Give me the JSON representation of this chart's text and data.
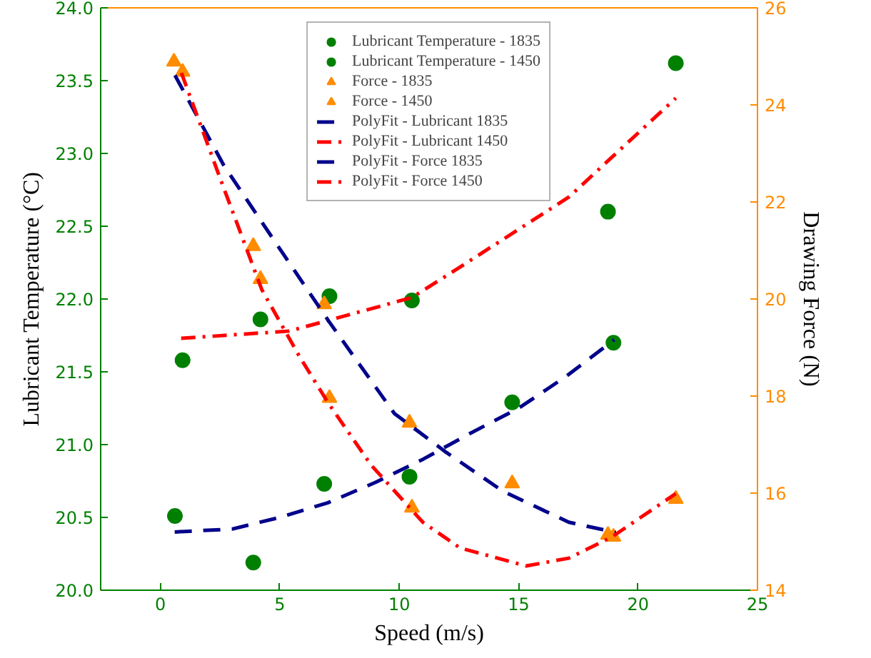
{
  "chart_data": {
    "type": "scatter",
    "xlabel": "Speed (m/s)",
    "ylabel": "Lubricant Temperature (°C)",
    "y2label": "Drawing Force (N)",
    "xlim": [
      -2.5,
      25
    ],
    "xticks": [
      0,
      5,
      10,
      15,
      20,
      25
    ],
    "ylim": [
      20.0,
      24.0
    ],
    "yticks": [
      {
        "value": 20.0,
        "label": "20.0"
      },
      {
        "value": 20.5,
        "label": "20.5"
      },
      {
        "value": 21.0,
        "label": "21.0"
      },
      {
        "value": 21.5,
        "label": "21.5"
      },
      {
        "value": 22.0,
        "label": "22.0"
      },
      {
        "value": 22.5,
        "label": "22.5"
      },
      {
        "value": 23.0,
        "label": "23.0"
      },
      {
        "value": 23.5,
        "label": "23.5"
      },
      {
        "value": 24.0,
        "label": "24.0"
      }
    ],
    "y2lim": [
      14,
      26
    ],
    "y2ticks": [
      14,
      16,
      18,
      20,
      22,
      24,
      26
    ],
    "grid": false,
    "legend": "top",
    "series": [
      {
        "name": "Lubricant Temperature - 1835",
        "marker": "circle",
        "color": "#008000",
        "x": [
          0.61,
          3.89,
          6.86,
          10.43,
          14.73,
          18.97
        ],
        "values": [
          20.51,
          20.19,
          20.73,
          20.78,
          21.29,
          21.7
        ]
      },
      {
        "name": "Lubricant Temperature - 1450",
        "marker": "circle",
        "color": "#008000",
        "x": [
          0.93,
          4.19,
          7.08,
          10.53,
          18.74,
          21.58
        ],
        "values": [
          21.58,
          21.86,
          22.02,
          21.99,
          22.6,
          23.62
        ]
      },
      {
        "name": "Force - 1835",
        "marker": "triangle",
        "color": "#ff8c00",
        "axis": "y2",
        "x": [
          0.57,
          3.89,
          6.86,
          10.43,
          14.73,
          18.74
        ],
        "values": [
          24.89,
          21.09,
          19.89,
          17.45,
          16.2,
          15.14
        ]
      },
      {
        "name": "Force - 1450",
        "marker": "triangle",
        "color": "#ff8c00",
        "axis": "y2",
        "x": [
          0.93,
          4.19,
          7.08,
          10.53,
          18.97,
          21.58
        ],
        "values": [
          24.68,
          20.41,
          17.96,
          15.7,
          15.1,
          15.88
        ]
      },
      {
        "name": "PolyFit - Lubricant 1835",
        "type": "line",
        "line_style": "dashed",
        "color": "#00008b",
        "x": [
          0.6,
          3,
          5,
          7,
          9,
          11,
          13,
          15,
          17,
          19
        ],
        "values": [
          20.4,
          20.42,
          20.5,
          20.6,
          20.74,
          20.9,
          21.08,
          21.25,
          21.47,
          21.72
        ]
      },
      {
        "name": "PolyFit - Lubricant 1450",
        "type": "line",
        "line_style": "dashdot",
        "color": "#ff0000",
        "x": [
          0.87,
          5.4,
          10.53,
          12.55,
          17.1,
          21.58
        ],
        "values": [
          21.73,
          21.78,
          22.01,
          22.22,
          22.7,
          23.38
        ]
      },
      {
        "name": "PolyFit - Force 1835",
        "type": "line",
        "line_style": "dashed",
        "color": "#00008b",
        "axis": "y2",
        "x": [
          0.61,
          2.66,
          5.06,
          7.04,
          9.8,
          11.97,
          14.34,
          17.1,
          19.07
        ],
        "values": [
          24.61,
          22.75,
          20.99,
          19.55,
          17.64,
          16.84,
          16.04,
          15.4,
          15.19
        ]
      },
      {
        "name": "PolyFit - Force 1450",
        "type": "line",
        "line_style": "dashdot",
        "color": "#ff0000",
        "axis": "y2",
        "x": [
          0.88,
          2.47,
          4.25,
          5.83,
          7.04,
          8.82,
          10.99,
          12.55,
          15.32,
          17.1,
          18.88,
          21.58
        ],
        "values": [
          24.66,
          22.53,
          20.19,
          18.81,
          17.85,
          16.58,
          15.4,
          14.87,
          14.5,
          14.66,
          15.09,
          15.99
        ]
      }
    ]
  }
}
